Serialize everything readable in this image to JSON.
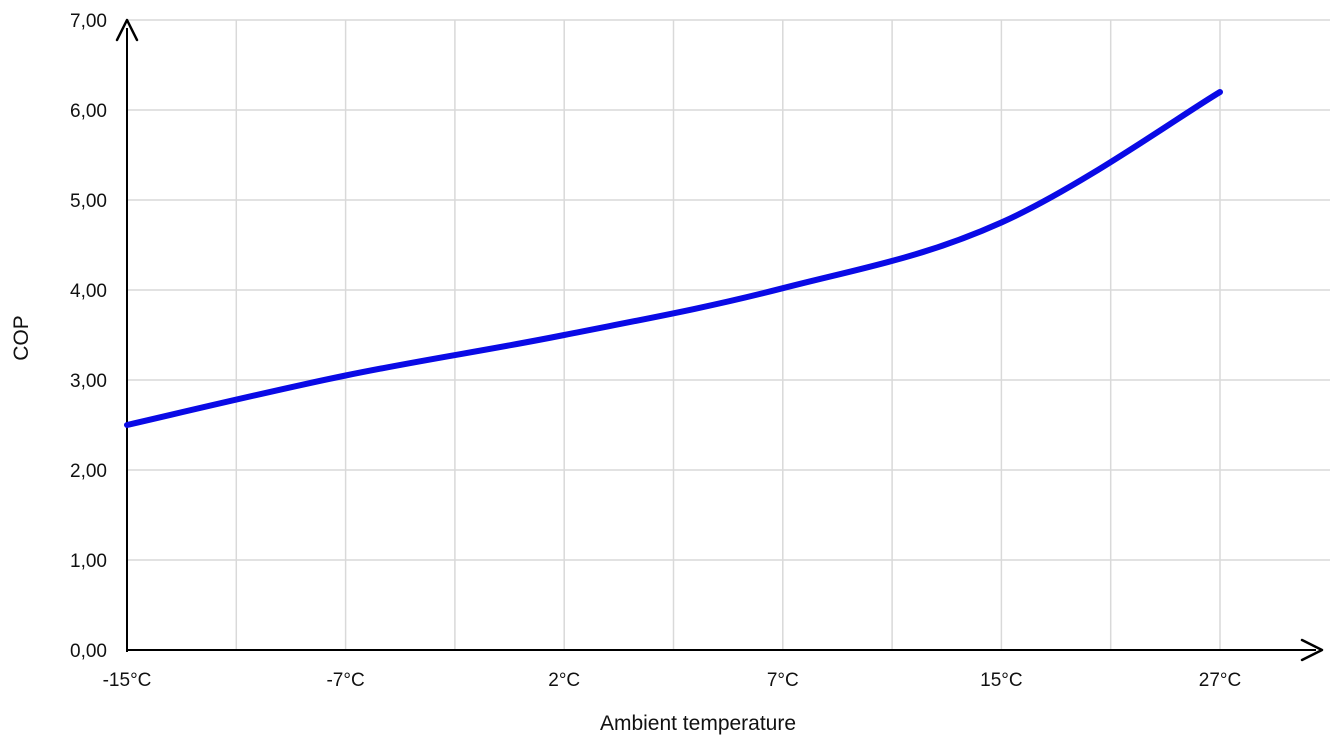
{
  "chart_data": {
    "type": "line",
    "title": "",
    "xlabel": "Ambient temperature",
    "ylabel": "COP",
    "categories": [
      "-15°C",
      "-7°C",
      "2°C",
      "7°C",
      "15°C",
      "27°C"
    ],
    "y_ticks": [
      "0,00",
      "1,00",
      "2,00",
      "3,00",
      "4,00",
      "5,00",
      "6,00",
      "7,00"
    ],
    "ylim": [
      0,
      7
    ],
    "grid": true,
    "legend": "none",
    "series": [
      {
        "color": "#0a0ae6",
        "values": [
          2.5,
          3.05,
          3.5,
          4.02,
          4.75,
          6.2
        ]
      }
    ]
  }
}
